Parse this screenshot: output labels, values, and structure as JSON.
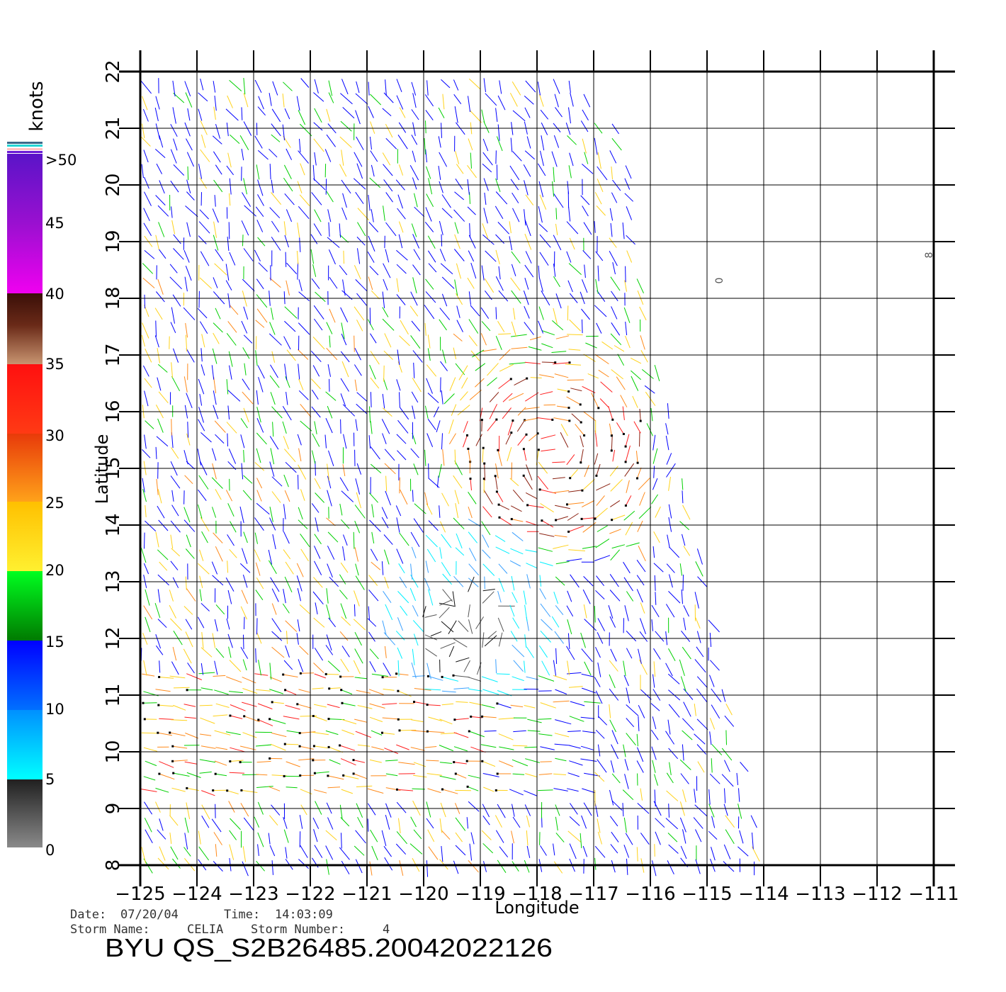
{
  "axes": {
    "x_label": "Longitude",
    "y_label": "Latitude",
    "x_ticks": [
      "-125",
      "-124",
      "-123",
      "-122",
      "-121",
      "-120",
      "-119",
      "-118",
      "-117",
      "-116",
      "-115",
      "-114",
      "-113",
      "-112",
      "-111"
    ],
    "y_ticks": [
      "8",
      "9",
      "10",
      "11",
      "12",
      "13",
      "14",
      "15",
      "16",
      "17",
      "18",
      "19",
      "20",
      "21",
      "22"
    ],
    "lon_range": [
      -125,
      -111
    ],
    "lat_range": [
      8,
      22
    ]
  },
  "legend": {
    "unit": "knots",
    "labels": [
      ">50",
      "45",
      "40",
      "35",
      "30",
      "25",
      "20",
      "15",
      "10",
      "5",
      "0"
    ],
    "colors": {
      "purple": "#6a1bd6",
      "magenta": "#f000f0",
      "brown": "#b37654",
      "red": "#ff1f1f",
      "orange": "#ff8a1a",
      "yellow": "#ffd21a",
      "green": "#00d000",
      "blue": "#0000ff",
      "cyan": "#00f0ff",
      "gray": "#707070"
    }
  },
  "footer": {
    "date_label": "Date:",
    "date": "07/20/04",
    "time_label": "Time:",
    "time": "14:03:09",
    "storm_name_label": "Storm Name:",
    "storm_name": "CELIA",
    "storm_number_label": "Storm Number:",
    "storm_number": "4",
    "product_title": "BYU QS_S2B26485.20042022126"
  },
  "map": {
    "markers": [
      "0",
      "8"
    ]
  }
}
